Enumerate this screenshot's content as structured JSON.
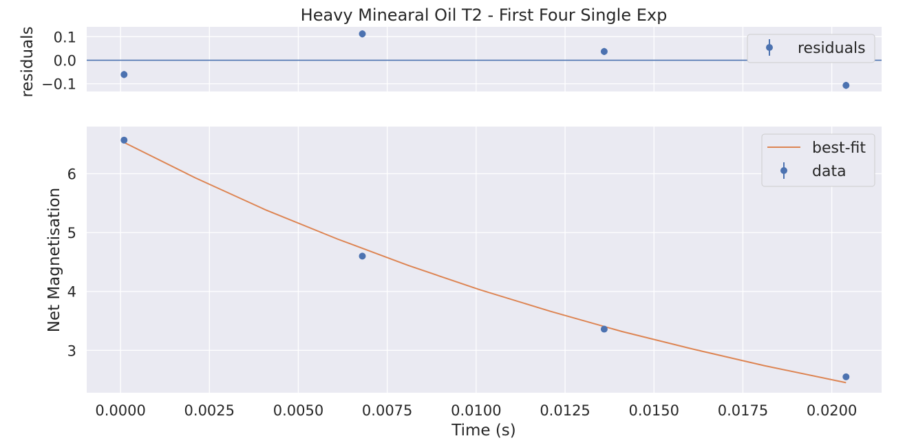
{
  "chart_data": [
    {
      "type": "scatter",
      "panel": "residuals",
      "title": "Heavy Minearal Oil T2 - First Four Single Exp",
      "ylabel": "residuals",
      "xlabel": "",
      "xlim": [
        -0.00095,
        0.0214
      ],
      "ylim": [
        -0.133,
        0.142
      ],
      "x_ticks": [
        0.0,
        0.0025,
        0.005,
        0.0075,
        0.01,
        0.0125,
        0.015,
        0.0175,
        0.02
      ],
      "y_ticks": [
        0.1,
        0.0,
        -0.1
      ],
      "y_tick_labels": [
        "0.1",
        "0.0",
        "−0.1"
      ],
      "grid": true,
      "reference_line_y": 0.0,
      "legend_position": "top-right",
      "series": [
        {
          "name": "residuals",
          "marker": "errorbar-point",
          "color": "#4c72b0",
          "x": [
            0.0001,
            0.0068,
            0.0136,
            0.0204
          ],
          "y": [
            -0.061,
            0.112,
            0.037,
            -0.107
          ],
          "yerr": [
            0.015,
            0.015,
            0.015,
            0.015
          ]
        }
      ]
    },
    {
      "type": "line",
      "panel": "main",
      "title": "",
      "xlabel": "Time (s)",
      "ylabel": "Net Magnetisation",
      "xlim": [
        -0.00095,
        0.0214
      ],
      "ylim": [
        2.28,
        6.8
      ],
      "x_ticks": [
        0.0,
        0.0025,
        0.005,
        0.0075,
        0.01,
        0.0125,
        0.015,
        0.0175,
        0.02
      ],
      "x_tick_labels": [
        "0.0000",
        "0.0025",
        "0.0050",
        "0.0075",
        "0.0100",
        "0.0125",
        "0.0150",
        "0.0175",
        "0.0200"
      ],
      "y_ticks": [
        3,
        4,
        5,
        6
      ],
      "y_tick_labels": [
        "3",
        "4",
        "5",
        "6"
      ],
      "grid": true,
      "legend_position": "top-right",
      "series": [
        {
          "name": "best-fit",
          "kind": "line",
          "color": "#dd8452",
          "x": [
            0.0001,
            0.0021,
            0.0041,
            0.0061,
            0.0081,
            0.0101,
            0.0121,
            0.0141,
            0.0161,
            0.0181,
            0.0204
          ],
          "y": [
            6.53,
            5.93,
            5.38,
            4.89,
            4.44,
            4.03,
            3.66,
            3.32,
            3.02,
            2.74,
            2.45
          ]
        },
        {
          "name": "data",
          "kind": "errorbar-point",
          "color": "#4c72b0",
          "x": [
            0.0001,
            0.0068,
            0.0136,
            0.0204
          ],
          "y": [
            6.57,
            4.6,
            3.36,
            2.55
          ],
          "yerr": [
            0.02,
            0.02,
            0.02,
            0.02
          ]
        }
      ]
    }
  ]
}
